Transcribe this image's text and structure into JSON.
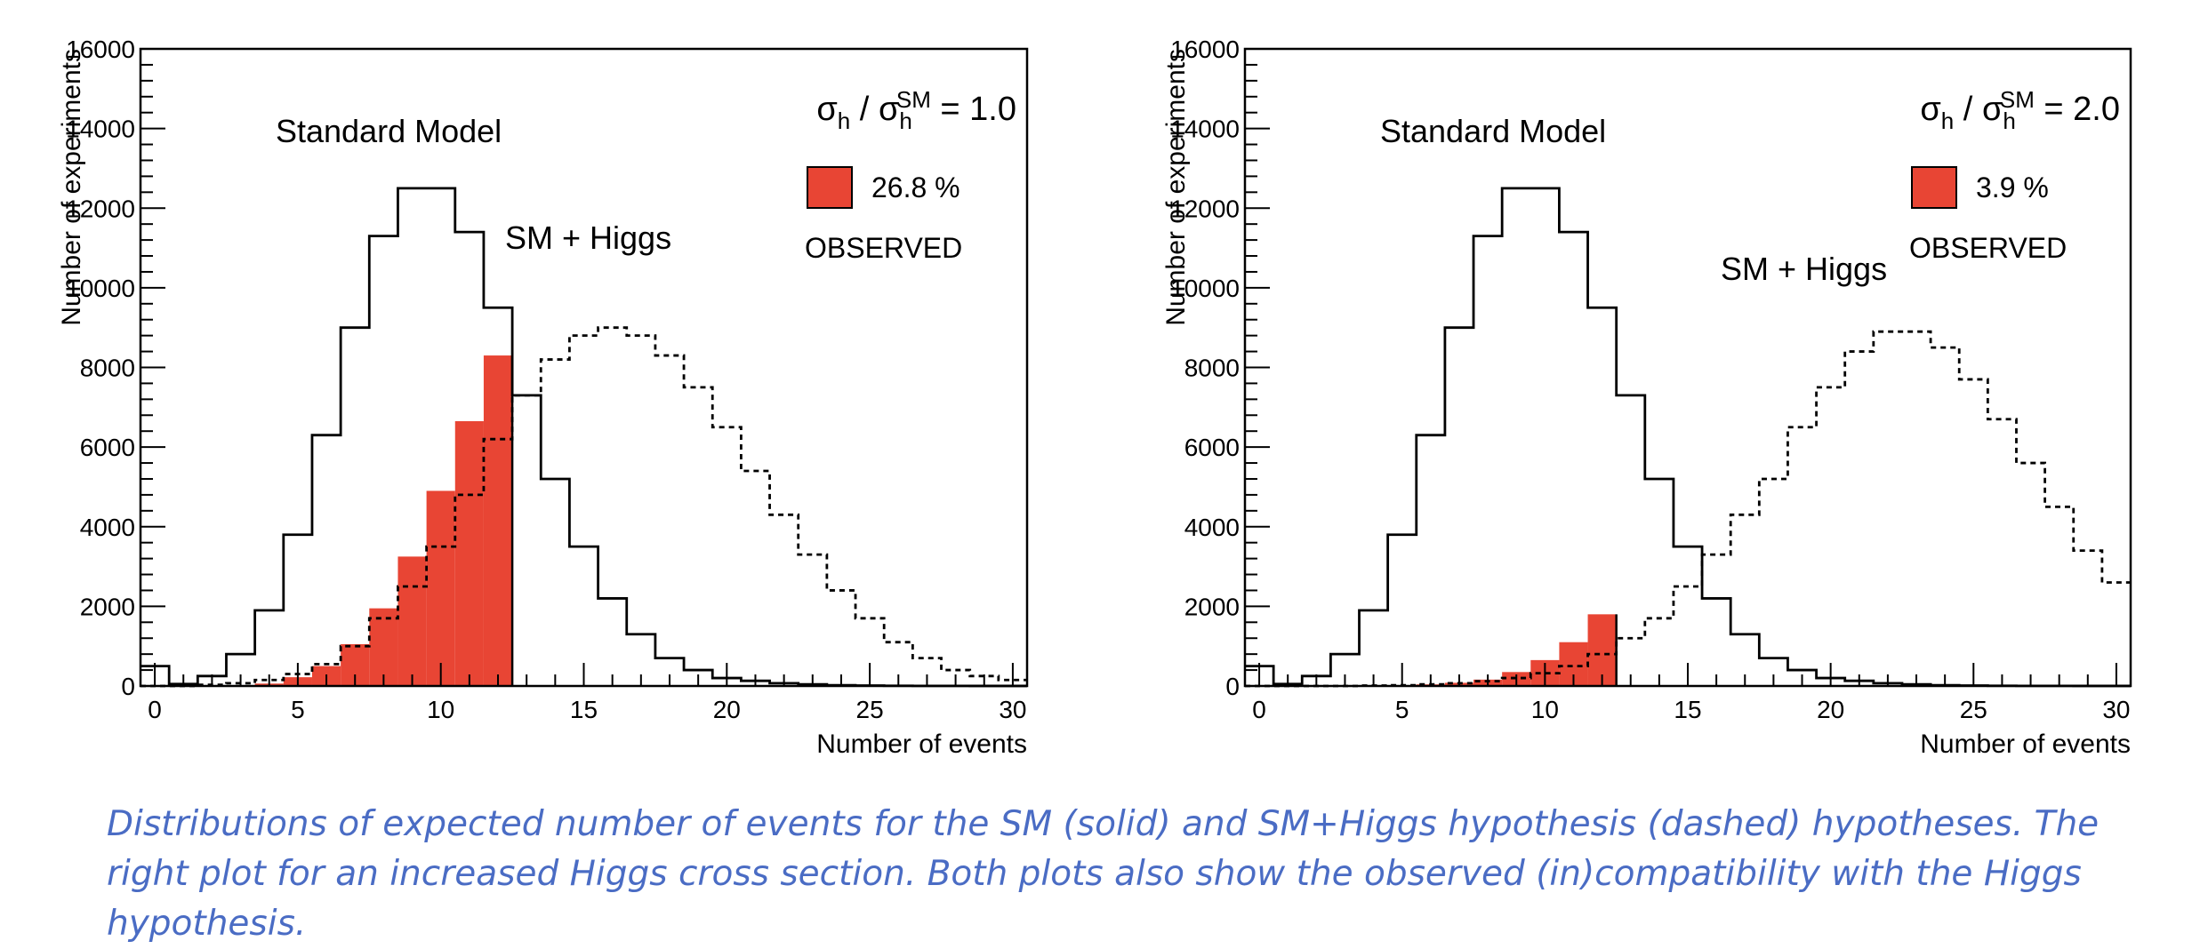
{
  "chart_data": [
    {
      "type": "histogram",
      "xlabel": "Number of events",
      "ylabel": "Number of experiments",
      "xlim": [
        -0.5,
        30.5
      ],
      "ylim": [
        0,
        16000
      ],
      "x_ticks": [
        "0",
        "5",
        "10",
        "15",
        "20",
        "25",
        "30"
      ],
      "y_ticks": [
        "0",
        "2000",
        "4000",
        "6000",
        "8000",
        "10000",
        "12000",
        "14000",
        "16000"
      ],
      "legend": {
        "ratio_prefix": "σ",
        "ratio_sub": "h",
        "ratio_sup": "SM",
        "ratio_value": "= 1.0",
        "percent": "26.8 %",
        "observed": "OBSERVED",
        "swatch_color": "#e84534"
      },
      "annotations": [
        "Standard Model",
        "SM + Higgs"
      ],
      "grid": false,
      "observed_cut": 12,
      "series": [
        {
          "name": "Standard Model",
          "style": "solid",
          "values": [
            500,
            50,
            250,
            800,
            1900,
            3800,
            6300,
            9000,
            11300,
            12500,
            12500,
            11400,
            9500,
            7300,
            5200,
            3500,
            2200,
            1300,
            700,
            400,
            200,
            130,
            70,
            40,
            20,
            10,
            5,
            3,
            2,
            1,
            1
          ]
        },
        {
          "name": "SM + Higgs",
          "style": "dashed",
          "values": [
            0,
            0,
            30,
            70,
            150,
            300,
            550,
            1000,
            1700,
            2500,
            3500,
            4800,
            6200,
            7300,
            8200,
            8800,
            9000,
            8800,
            8300,
            7500,
            6500,
            5400,
            4300,
            3300,
            2400,
            1700,
            1100,
            700,
            400,
            250,
            150
          ]
        },
        {
          "name": "OBSERVED",
          "style": "filled",
          "values": [
            0,
            0,
            0,
            0,
            60,
            220,
            500,
            1050,
            1950,
            3250,
            4900,
            6650,
            8300
          ]
        }
      ]
    },
    {
      "type": "histogram",
      "xlabel": "Number of events",
      "ylabel": "Number of experiments",
      "xlim": [
        -0.5,
        30.5
      ],
      "ylim": [
        0,
        16000
      ],
      "x_ticks": [
        "0",
        "5",
        "10",
        "15",
        "20",
        "25",
        "30"
      ],
      "y_ticks": [
        "0",
        "2000",
        "4000",
        "6000",
        "8000",
        "10000",
        "12000",
        "14000",
        "16000"
      ],
      "legend": {
        "ratio_prefix": "σ",
        "ratio_sub": "h",
        "ratio_sup": "SM",
        "ratio_value": "= 2.0",
        "percent": "3.9 %",
        "observed": "OBSERVED",
        "swatch_color": "#e84534"
      },
      "annotations": [
        "Standard Model",
        "SM + Higgs"
      ],
      "grid": false,
      "observed_cut": 12,
      "series": [
        {
          "name": "Standard Model",
          "style": "solid",
          "values": [
            500,
            50,
            250,
            800,
            1900,
            3800,
            6300,
            9000,
            11300,
            12500,
            12500,
            11400,
            9500,
            7300,
            5200,
            3500,
            2200,
            1300,
            700,
            400,
            200,
            130,
            70,
            40,
            20,
            10,
            5,
            3,
            2,
            1,
            1
          ]
        },
        {
          "name": "SM + Higgs",
          "style": "dashed",
          "values": [
            0,
            0,
            0,
            0,
            10,
            20,
            40,
            70,
            120,
            200,
            320,
            500,
            800,
            1200,
            1700,
            2500,
            3300,
            4300,
            5200,
            6500,
            7500,
            8400,
            8900,
            8900,
            8500,
            7700,
            6700,
            5600,
            4500,
            3400,
            2600
          ]
        },
        {
          "name": "OBSERVED",
          "style": "filled",
          "values": [
            0,
            0,
            0,
            0,
            0,
            20,
            40,
            80,
            160,
            350,
            650,
            1100,
            1800
          ]
        }
      ]
    }
  ],
  "caption": "Distributions of expected number of events for the SM (solid) and SM+Higgs hypothesis (dashed) hypotheses. The right plot for an increased Higgs cross section. Both plots also show the observed (in)compatibility with the Higgs hypothesis."
}
